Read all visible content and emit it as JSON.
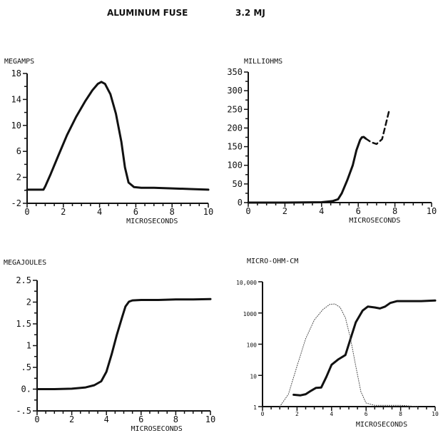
{
  "figure": {
    "title": "ALUMINUM FUSE",
    "energy": "3.2 MJ"
  },
  "chart_data": [
    {
      "type": "line",
      "panel": "top-left",
      "ylabel": "MEGAMPS",
      "xlabel": "MICROSECONDS",
      "xlim": [
        0,
        10
      ],
      "ylim": [
        -2,
        18
      ],
      "xticks": [
        0,
        2,
        4,
        6,
        8,
        10
      ],
      "xtick_labels": [
        "0",
        "2",
        "4",
        "6",
        "8",
        "10"
      ],
      "yticks": [
        -2,
        2,
        6,
        10,
        14,
        18
      ],
      "ytick_labels": [
        "-2",
        "2",
        "6",
        "10",
        "14",
        "18"
      ],
      "series": [
        {
          "style": "solid",
          "x": [
            0,
            0.9,
            1.0,
            1.3,
            1.7,
            2.2,
            2.7,
            3.2,
            3.6,
            3.9,
            4.1,
            4.3,
            4.6,
            4.9,
            5.2,
            5.4,
            5.6,
            5.9,
            6.3,
            7,
            8,
            9,
            10
          ],
          "y": [
            0.1,
            0.1,
            0.6,
            2.5,
            5.2,
            8.5,
            11.3,
            13.7,
            15.4,
            16.4,
            16.7,
            16.4,
            14.8,
            11.8,
            7.5,
            3.5,
            1.2,
            0.5,
            0.4,
            0.4,
            0.3,
            0.2,
            0.1
          ]
        }
      ]
    },
    {
      "type": "line",
      "panel": "top-right",
      "ylabel": "MILLIOHMS",
      "xlabel": "MICROSECONDS",
      "xlim": [
        0,
        10
      ],
      "ylim": [
        0,
        350
      ],
      "xticks": [
        0,
        2,
        4,
        6,
        8,
        10
      ],
      "xtick_labels": [
        "0",
        "2",
        "4",
        "6",
        "8",
        "10"
      ],
      "yticks": [
        0,
        50,
        100,
        150,
        200,
        250,
        300,
        350
      ],
      "ytick_labels": [
        "0",
        "50",
        "100",
        "150",
        "200",
        "250",
        "300",
        "350"
      ],
      "series": [
        {
          "style": "solid",
          "x": [
            0,
            2,
            4,
            4.6,
            4.9,
            5.1,
            5.4,
            5.7,
            5.9,
            6.1,
            6.2,
            6.3,
            6.4
          ],
          "y": [
            0,
            0,
            1,
            4,
            9,
            25,
            60,
            100,
            140,
            168,
            175,
            176,
            172
          ]
        },
        {
          "style": "dashed",
          "x": [
            6.4,
            6.7,
            7.0,
            7.3,
            7.5,
            7.7
          ],
          "y": [
            172,
            162,
            157,
            170,
            210,
            250
          ]
        }
      ]
    },
    {
      "type": "line",
      "panel": "bottom-left",
      "ylabel": "MEGAJOULES",
      "xlabel": "MICROSECONDS",
      "xlim": [
        0,
        10
      ],
      "ylim": [
        -0.5,
        2.5
      ],
      "xticks": [
        0,
        2,
        4,
        6,
        8,
        10
      ],
      "xtick_labels": [
        "0",
        "2",
        "4",
        "6",
        "8",
        "10"
      ],
      "yticks": [
        -0.5,
        0,
        0.5,
        1,
        1.5,
        2,
        2.5
      ],
      "ytick_labels": [
        "-.5",
        "0.",
        ".5",
        "1",
        "1.5",
        "2",
        "2.5"
      ],
      "series": [
        {
          "style": "solid",
          "x": [
            0,
            1,
            2,
            2.8,
            3.3,
            3.7,
            4.0,
            4.3,
            4.6,
            4.9,
            5.1,
            5.3,
            5.5,
            6,
            7,
            8,
            9,
            10
          ],
          "y": [
            0,
            0,
            0.01,
            0.04,
            0.09,
            0.18,
            0.4,
            0.8,
            1.25,
            1.65,
            1.9,
            2.01,
            2.04,
            2.05,
            2.05,
            2.06,
            2.06,
            2.07
          ]
        }
      ]
    },
    {
      "type": "line",
      "panel": "bottom-right",
      "ylabel": "MICRO-OHM-CM",
      "xlabel": "MICROSECONDS",
      "xlim": [
        0,
        10
      ],
      "ylim": [
        1,
        10000
      ],
      "yscale": "log",
      "xticks": [
        0,
        2,
        4,
        6,
        8,
        10
      ],
      "xtick_labels": [
        "0",
        "2",
        "4",
        "6",
        "8",
        "10"
      ],
      "yticks": [
        1,
        10,
        100,
        1000,
        10000
      ],
      "ytick_labels": [
        "1",
        "10",
        "100",
        "1000",
        "10,000"
      ],
      "series": [
        {
          "style": "solid",
          "x": [
            1.8,
            2.2,
            2.5,
            2.8,
            3.1,
            3.4,
            3.7,
            4.0,
            4.4,
            4.8,
            5.1,
            5.4,
            5.8,
            6.1,
            6.5,
            6.8,
            7.1,
            7.4,
            7.8,
            8.5,
            9.2,
            10
          ],
          "y": [
            2.4,
            2.3,
            2.5,
            3.2,
            4.0,
            4.1,
            9,
            22,
            33,
            45,
            150,
            500,
            1200,
            1600,
            1500,
            1400,
            1600,
            2100,
            2400,
            2400,
            2400,
            2500
          ]
        },
        {
          "style": "dotted",
          "x": [
            1.0,
            1.5,
            2.0,
            2.5,
            3.0,
            3.5,
            3.9,
            4.2,
            4.5,
            4.8,
            5.1,
            5.4,
            5.7,
            6.0,
            6.5,
            7,
            8,
            9
          ],
          "y": [
            1.0,
            2.5,
            20,
            150,
            600,
            1300,
            1900,
            1950,
            1500,
            700,
            150,
            20,
            3,
            1.3,
            1.1,
            1.1,
            1.1,
            1.0
          ]
        }
      ]
    }
  ]
}
